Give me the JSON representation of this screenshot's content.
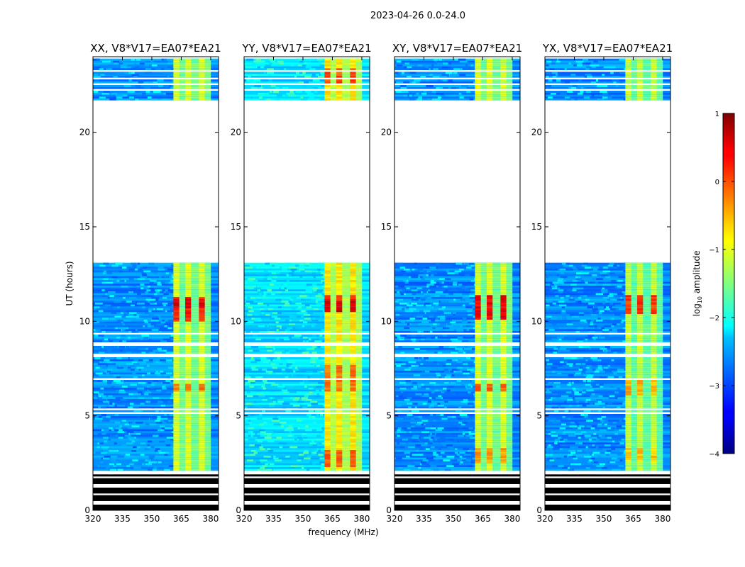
{
  "suptitle": "2023-04-26 0.0-24.0",
  "chart_data": {
    "type": "heatmap",
    "panels": [
      {
        "title": "XX, V8*V17=EA07*EA21",
        "baseline_level": -2.7,
        "rfi_level": -1.2,
        "strong_rows": [
          [
            6.2,
            6.6,
            0.0
          ],
          [
            9.9,
            11.2,
            0.4
          ],
          [
            10.6,
            11.1,
            0.7
          ]
        ]
      },
      {
        "title": "YY, V8*V17=EA07*EA21",
        "baseline_level": -2.3,
        "rfi_level": -0.9,
        "strong_rows": [
          [
            2.3,
            3.2,
            0.1
          ],
          [
            6.2,
            7.6,
            0.0
          ],
          [
            10.4,
            11.3,
            0.8
          ],
          [
            11.0,
            11.3,
            0.4
          ],
          [
            22.6,
            23.4,
            0.2
          ]
        ]
      },
      {
        "title": "XY, V8*V17=EA07*EA21",
        "baseline_level": -2.7,
        "rfi_level": -1.2,
        "strong_rows": [
          [
            6.2,
            6.6,
            0.1
          ],
          [
            10.0,
            11.3,
            0.6
          ],
          [
            2.5,
            3.3,
            -0.2
          ]
        ]
      },
      {
        "title": "YX, V8*V17=EA07*EA21",
        "baseline_level": -2.7,
        "rfi_level": -1.3,
        "strong_rows": [
          [
            10.3,
            11.3,
            0.3
          ],
          [
            6.0,
            6.8,
            -0.3
          ],
          [
            2.6,
            3.3,
            -0.4
          ]
        ]
      }
    ],
    "xlabel": "frequency (MHz)",
    "ylabel": "UT (hours)",
    "xlim": [
      320,
      384
    ],
    "ylim": [
      0,
      24
    ],
    "xticks": [
      320,
      335,
      350,
      365,
      380
    ],
    "yticks": [
      0,
      5,
      10,
      15,
      20
    ],
    "rfi_bands_mhz": [
      [
        361,
        364
      ],
      [
        364,
        367
      ],
      [
        367,
        370
      ],
      [
        370,
        374
      ],
      [
        374,
        377
      ],
      [
        377,
        380
      ]
    ],
    "data_gaps_ut": [
      [
        1.9,
        2.1
      ],
      [
        5.0,
        5.15
      ],
      [
        5.2,
        5.35
      ],
      [
        8.0,
        8.2
      ],
      [
        8.6,
        8.8
      ],
      [
        6.8,
        6.9
      ],
      [
        9.2,
        9.3
      ],
      [
        13.0,
        21.7
      ],
      [
        22.15,
        22.3
      ],
      [
        22.5,
        22.6
      ],
      [
        22.8,
        22.9
      ],
      [
        23.2,
        23.3
      ],
      [
        23.9,
        24.0
      ]
    ],
    "flagged_range_ut": [
      0,
      1.9
    ],
    "colorbar": {
      "label": "log",
      "label_sub": "10",
      "label_rest": " amplitude",
      "range": [
        -4,
        1
      ],
      "ticks": [
        "1",
        "0",
        "−1",
        "−2",
        "−3",
        "−4"
      ],
      "tick_values": [
        1,
        0,
        -1,
        -2,
        -3,
        -4
      ],
      "colormap": "jet"
    }
  }
}
